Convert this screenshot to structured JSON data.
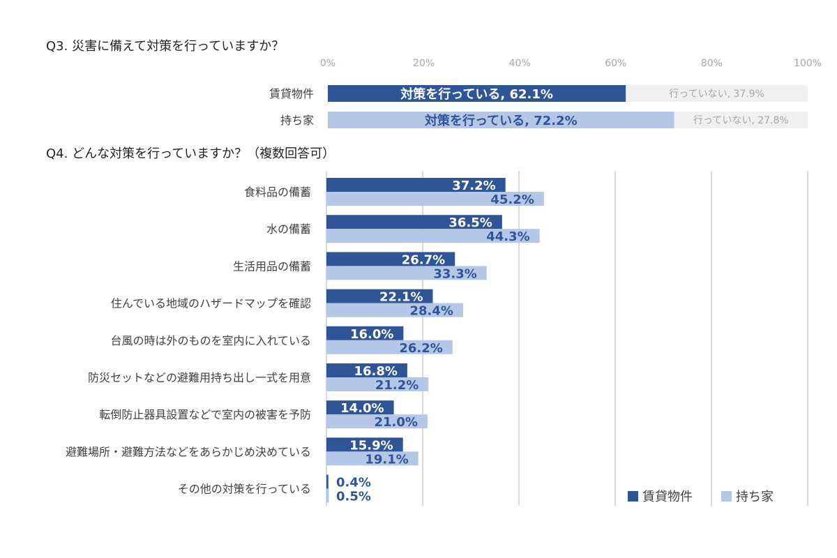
{
  "q3": {
    "title": "Q3. 災害に備えて対策を行っていますか？",
    "ticks": [
      "0%",
      "20%",
      "40%",
      "60%",
      "80%",
      "100%"
    ],
    "rows": [
      {
        "label": "賃貸物件",
        "yes_text": "対策を行っている, 62.1%",
        "no_text": "行っていない, 37.9%"
      },
      {
        "label": "持ち家",
        "yes_text": "対策を行っている, 72.2%",
        "no_text": "行っていない, 27.8%"
      }
    ]
  },
  "q4": {
    "title": "Q4. どんな対策を行っていますか？（複数回答可）"
  },
  "chart_data": [
    {
      "type": "bar",
      "orientation": "horizontal",
      "stacked": true,
      "title": "Q3. 災害に備えて対策を行っていますか？",
      "categories": [
        "賃貸物件",
        "持ち家"
      ],
      "series": [
        {
          "name": "対策を行っている",
          "values": [
            62.1,
            72.2
          ]
        },
        {
          "name": "行っていない",
          "values": [
            37.9,
            27.8
          ]
        }
      ],
      "xlim": [
        0,
        100
      ],
      "grid": false
    },
    {
      "type": "bar",
      "orientation": "horizontal",
      "title": "Q4. どんな対策を行っていますか？（複数回答可）",
      "categories": [
        "食料品の備蓄",
        "水の備蓄",
        "生活用品の備蓄",
        "住んでいる地域のハザードマップを確認",
        "台風の時は外のものを室内に入れている",
        "防災セットなどの避難用持ち出し一式を用意",
        "転倒防止器具設置などで室内の被害を予防",
        "避難場所・避難方法などをあらかじめ決めている",
        "その他の対策を行っている"
      ],
      "series": [
        {
          "name": "賃貸物件",
          "values": [
            37.2,
            36.5,
            26.7,
            22.1,
            16.0,
            16.8,
            14.0,
            15.9,
            0.4
          ]
        },
        {
          "name": "持ち家",
          "values": [
            45.2,
            44.3,
            33.3,
            28.4,
            26.2,
            21.2,
            21.0,
            19.1,
            0.5
          ]
        }
      ],
      "xlim": [
        0,
        100
      ],
      "grid": true,
      "legend": "bottom-right"
    }
  ],
  "colors": {
    "rental": "#2f5597",
    "owned": "#b4c7e7",
    "no": "#f0f0f0",
    "grid": "#d9d9d9",
    "tick": "#a6a6a6",
    "label": "#404040",
    "no_text": "#a6a6a6"
  }
}
